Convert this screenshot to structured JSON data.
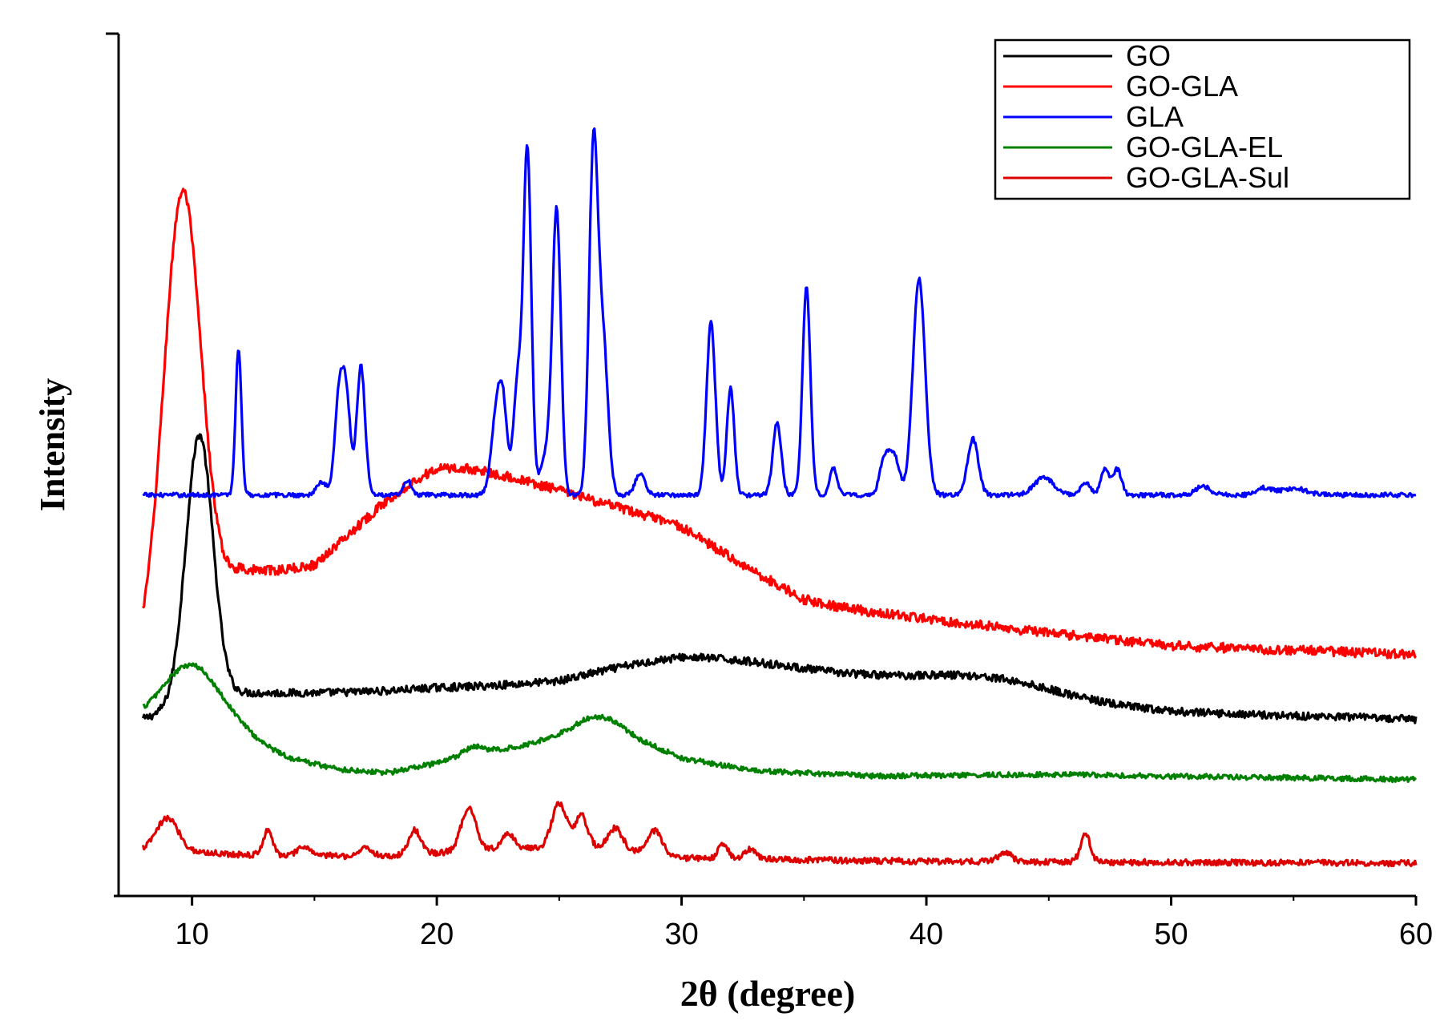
{
  "chart_data": {
    "type": "line",
    "xlabel": "2θ (degree)",
    "ylabel": "Intensity",
    "xlim": [
      7,
      60
    ],
    "x_ticks": [
      "10",
      "20",
      "30",
      "40",
      "50",
      "60"
    ],
    "y_ticks": [],
    "grid": false,
    "legend_position": "top-right",
    "series": [
      {
        "name": "GO",
        "color": "#000000",
        "offset": 20.5,
        "peaks": [
          [
            10.3,
            31,
            0.55
          ],
          [
            30.5,
            4.0,
            6.0
          ],
          [
            42.5,
            2.5,
            3.0
          ]
        ],
        "baseline": [
          [
            8,
            0.0
          ],
          [
            9.5,
            1.5
          ],
          [
            12,
            3.0
          ],
          [
            20,
            2.8
          ],
          [
            25,
            1.8
          ],
          [
            30,
            3.2
          ],
          [
            38,
            2.5
          ],
          [
            45,
            1.5
          ],
          [
            50,
            0.8
          ],
          [
            60,
            0.0
          ]
        ],
        "noise": 0.45
      },
      {
        "name": "GO-GLA",
        "color": "#ff0000",
        "offset": 28.0,
        "peaks": [
          [
            9.6,
            50,
            0.75
          ],
          [
            19.5,
            8.0,
            3.5
          ],
          [
            26.5,
            6.0,
            5.0
          ]
        ],
        "baseline": [
          [
            8,
            0.0
          ],
          [
            12,
            9.0
          ],
          [
            15,
            6.5
          ],
          [
            20,
            11.0
          ],
          [
            25,
            11.0
          ],
          [
            30,
            10.0
          ],
          [
            35,
            5.0
          ],
          [
            40,
            4.0
          ],
          [
            45,
            2.5
          ],
          [
            50,
            1.0
          ],
          [
            60,
            0.0
          ]
        ],
        "noise": 0.55
      },
      {
        "name": "GLA",
        "color": "#0000ff",
        "offset": 46.5,
        "peaks": [
          [
            11.9,
            17,
            0.12
          ],
          [
            15.3,
            1.5,
            0.2
          ],
          [
            16.0,
            11,
            0.17
          ],
          [
            16.3,
            11,
            0.17
          ],
          [
            16.9,
            15,
            0.17
          ],
          [
            18.8,
            1.7,
            0.15
          ],
          [
            22.4,
            8,
            0.2
          ],
          [
            22.7,
            10,
            0.18
          ],
          [
            23.3,
            13,
            0.17
          ],
          [
            23.7,
            40,
            0.16
          ],
          [
            24.5,
            5,
            0.25
          ],
          [
            24.9,
            32,
            0.17
          ],
          [
            26.4,
            40,
            0.18
          ],
          [
            26.8,
            17,
            0.2
          ],
          [
            28.3,
            2.5,
            0.2
          ],
          [
            31.2,
            20,
            0.18
          ],
          [
            32.0,
            12.5,
            0.15
          ],
          [
            33.9,
            8.5,
            0.17
          ],
          [
            35.1,
            24,
            0.16
          ],
          [
            36.2,
            3.2,
            0.15
          ],
          [
            38.3,
            4.2,
            0.2
          ],
          [
            38.7,
            4.2,
            0.2
          ],
          [
            39.7,
            25,
            0.25
          ],
          [
            41.9,
            6.5,
            0.22
          ],
          [
            44.8,
            2.0,
            0.4
          ],
          [
            46.5,
            1.5,
            0.2
          ],
          [
            47.3,
            3.0,
            0.17
          ],
          [
            47.8,
            3.0,
            0.17
          ],
          [
            51.3,
            1.0,
            0.3
          ],
          [
            53.8,
            0.8,
            0.3
          ],
          [
            55.0,
            0.8,
            0.5
          ]
        ],
        "baseline": [
          [
            8,
            0.0
          ],
          [
            20,
            0.0
          ],
          [
            40,
            0.0
          ],
          [
            60,
            0.0
          ]
        ],
        "noise": 0.25
      },
      {
        "name": "GO-GLA-EL",
        "color": "#008000",
        "offset": 13.5,
        "peaks": [
          [
            10,
            7.5,
            1.2
          ],
          [
            21.5,
            1.0,
            0.5
          ],
          [
            26.5,
            2.0,
            0.8
          ]
        ],
        "baseline": [
          [
            8,
            6.5
          ],
          [
            12,
            5.0
          ],
          [
            14,
            2.5
          ],
          [
            16,
            1.2
          ],
          [
            18,
            0.8
          ],
          [
            22,
            3.0
          ],
          [
            25,
            5.0
          ],
          [
            27.5,
            5.5
          ],
          [
            30,
            2.5
          ],
          [
            33,
            1.0
          ],
          [
            38,
            0.4
          ],
          [
            45,
            0.6
          ],
          [
            60,
            0.0
          ]
        ],
        "noise": 0.3
      },
      {
        "name": "GO-GLA-Sul",
        "color": "#dd0000",
        "offset": 3.8,
        "peaks": [
          [
            9.0,
            3.8,
            0.45
          ],
          [
            13.1,
            3.0,
            0.18
          ],
          [
            14.6,
            1.0,
            0.25
          ],
          [
            17.1,
            1.0,
            0.25
          ],
          [
            19.1,
            2.8,
            0.25
          ],
          [
            21.3,
            5.0,
            0.3
          ],
          [
            22.9,
            1.8,
            0.25
          ],
          [
            25.0,
            5.0,
            0.3
          ],
          [
            25.9,
            3.5,
            0.25
          ],
          [
            27.3,
            2.5,
            0.3
          ],
          [
            28.9,
            2.8,
            0.3
          ],
          [
            31.7,
            1.6,
            0.2
          ],
          [
            32.8,
            1.2,
            0.25
          ],
          [
            43.2,
            1.0,
            0.3
          ],
          [
            46.5,
            3.2,
            0.2
          ]
        ],
        "baseline": [
          [
            8,
            1.5
          ],
          [
            10,
            1.3
          ],
          [
            12,
            1.0
          ],
          [
            18,
            0.8
          ],
          [
            22,
            1.6
          ],
          [
            26,
            2.0
          ],
          [
            30,
            0.6
          ],
          [
            40,
            0.2
          ],
          [
            60,
            0.0
          ]
        ],
        "noise": 0.35
      }
    ]
  }
}
